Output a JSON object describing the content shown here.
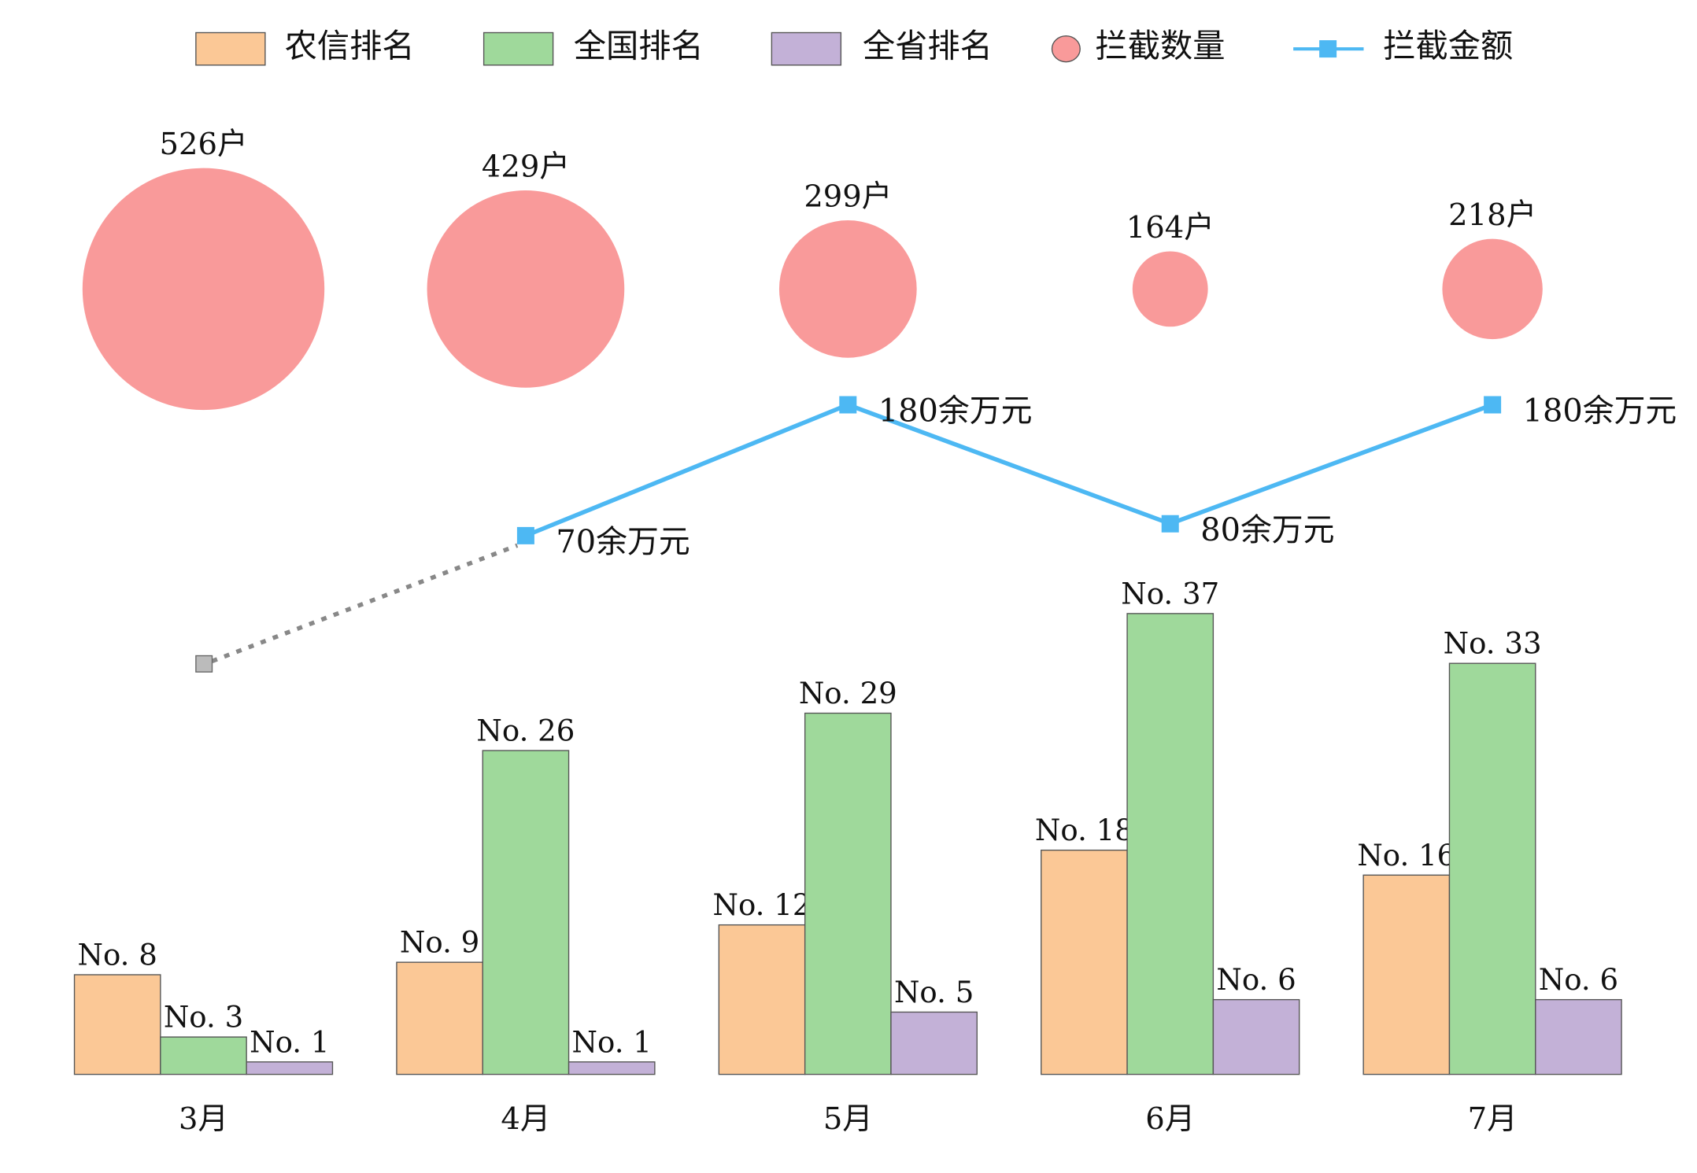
{
  "chart_data": [
    {
      "type": "bar",
      "categories": [
        "3月",
        "4月",
        "5月",
        "6月",
        "7月"
      ],
      "ylim": [
        0,
        37
      ],
      "series": [
        {
          "name": "农信排名",
          "color": "#fbc896",
          "values": [
            8,
            9,
            12,
            18,
            16
          ],
          "value_labels": [
            "No. 8",
            "No. 9",
            "No. 12",
            "No. 18",
            "No. 16"
          ]
        },
        {
          "name": "全国排名",
          "color": "#9fd99b",
          "values": [
            3,
            26,
            29,
            37,
            33
          ],
          "value_labels": [
            "No. 3",
            "No. 26",
            "No. 29",
            "No. 37",
            "No. 33"
          ]
        },
        {
          "name": "全省排名",
          "color": "#c3b1d7",
          "values": [
            1,
            1,
            5,
            6,
            6
          ],
          "value_labels": [
            "No. 1",
            "No. 1",
            "No. 5",
            "No. 6",
            "No. 6"
          ]
        }
      ]
    },
    {
      "type": "bubble",
      "series": [
        {
          "name": "拦截数量",
          "color": "#f99a9a",
          "values": [
            526,
            429,
            299,
            164,
            218
          ],
          "value_labels": [
            "526户",
            "429户",
            "299户",
            "164户",
            "218户"
          ]
        }
      ]
    },
    {
      "type": "line",
      "series": [
        {
          "name": "拦截金额",
          "color": "#4db8f3",
          "values": [
            null,
            70,
            180,
            80,
            180
          ],
          "value_labels": [
            null,
            "70余万元",
            "180余万元",
            "80余万元",
            "180余万元"
          ]
        }
      ]
    }
  ]
}
